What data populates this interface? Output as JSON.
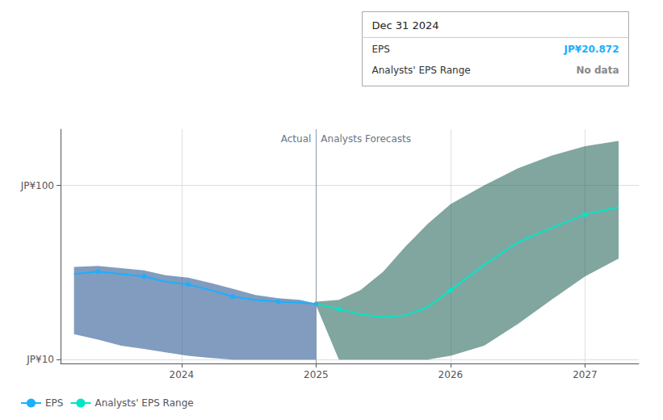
{
  "chart_data": {
    "type": "line",
    "log": "y",
    "grid": true,
    "legend": "bottom left",
    "xlim": [
      2023.1,
      2027.4
    ],
    "xticks": [
      2024,
      2025,
      2026,
      2027
    ],
    "ylim": [
      9.5,
      210
    ],
    "yticks": [
      {
        "value": 10,
        "label": "JP¥10"
      },
      {
        "value": 100,
        "label": "JP¥100"
      }
    ],
    "divider_x": 2025.0,
    "divider_labels": [
      "Actual",
      "Analysts Forecasts"
    ],
    "series": [
      {
        "name": "EPS",
        "color": "#1ab0ff",
        "band_color": "#1a4a8a",
        "x": [
          2023.2,
          2023.38,
          2023.55,
          2023.72,
          2023.88,
          2024.05,
          2024.22,
          2024.38,
          2024.55,
          2024.72,
          2024.88,
          2025.0
        ],
        "values": [
          31,
          32,
          31,
          30,
          28,
          27,
          25,
          23,
          22,
          21.5,
          21.2,
          20.872
        ],
        "upper": [
          34,
          34.5,
          33.5,
          32.5,
          30.5,
          29.5,
          27.5,
          25.5,
          23.5,
          22.5,
          22.0,
          21.0
        ],
        "lower": [
          14,
          13,
          12,
          11.5,
          11,
          10.5,
          10.2,
          10,
          10,
          10,
          10,
          10
        ],
        "marked_x": [
          2023.38,
          2023.72,
          2024.05,
          2024.38,
          2024.72,
          2025.0
        ]
      },
      {
        "name": "Analysts' EPS Range",
        "color": "#00e6c8",
        "band_color": "#1a5c50",
        "x": [
          2025.0,
          2025.17,
          2025.33,
          2025.5,
          2025.67,
          2025.83,
          2026.0,
          2026.25,
          2026.5,
          2026.75,
          2027.0,
          2027.25
        ],
        "values": [
          20.872,
          19.5,
          18.2,
          17.5,
          18.0,
          20.0,
          25.0,
          35.0,
          47.0,
          57.0,
          68.0,
          75.0
        ],
        "upper": [
          21.5,
          22.0,
          25.0,
          32.0,
          45.0,
          60.0,
          78.0,
          100.0,
          125.0,
          148.0,
          168.0,
          180.0
        ],
        "lower": [
          20.5,
          10.0,
          10.0,
          10.0,
          10.0,
          10.0,
          10.5,
          12.0,
          16.0,
          22.0,
          30.0,
          38.0
        ],
        "marked_x": [
          2025.17,
          2026.0,
          2027.0
        ]
      }
    ],
    "tooltip": {
      "title": "Dec 31 2024",
      "rows": [
        {
          "label": "EPS",
          "value": "JP¥20.872"
        },
        {
          "label": "Analysts' EPS Range",
          "value": "No data"
        }
      ]
    }
  }
}
